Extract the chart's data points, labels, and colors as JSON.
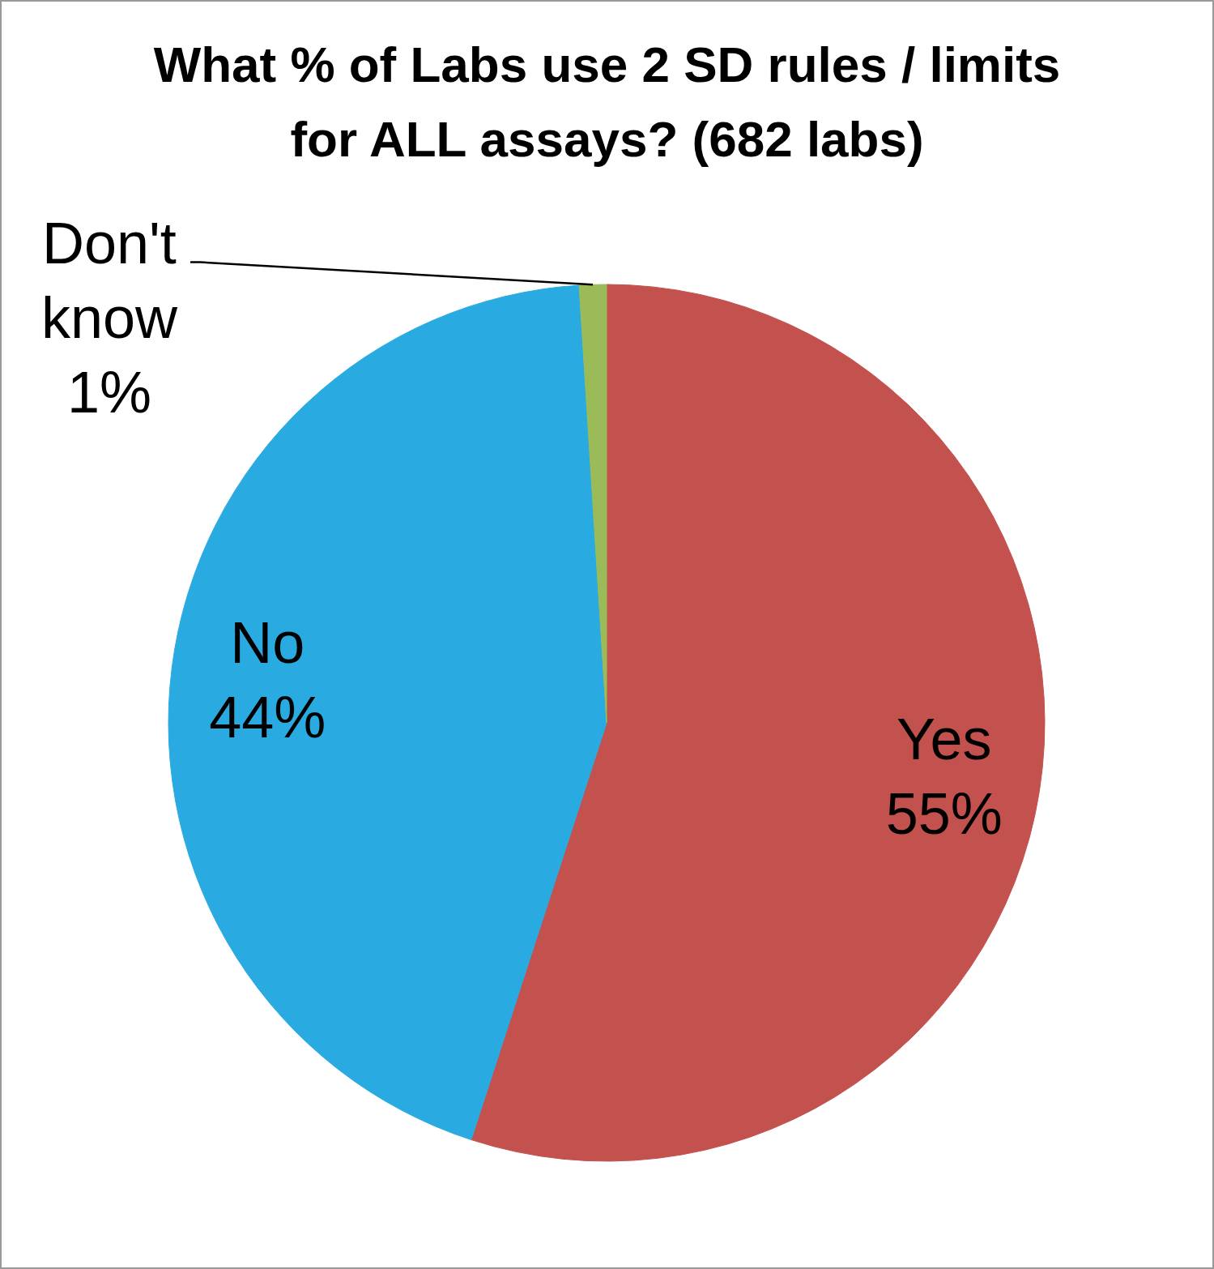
{
  "chart_data": {
    "type": "pie",
    "title": "What % of Labs use 2 SD rules / limits for ALL assays? (682 labs)",
    "categories": [
      "Yes",
      "No",
      "Don't know"
    ],
    "values": [
      55,
      44,
      1
    ],
    "colors": [
      "#c3524f",
      "#29abe2",
      "#9bbb59"
    ],
    "value_labels": [
      "55%",
      "44%",
      "1%"
    ]
  }
}
